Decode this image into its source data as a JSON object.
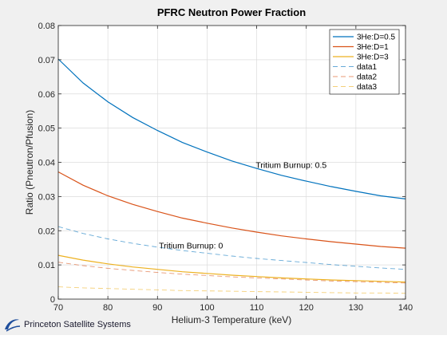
{
  "chart_data": {
    "type": "line",
    "title": "PFRC Neutron Power Fraction",
    "xlabel": "Helium-3 Temperature (keV)",
    "ylabel": "Ratio (Pneutron/Pfusion)",
    "xlim": [
      70,
      140
    ],
    "ylim": [
      0,
      0.08
    ],
    "xticks": [
      70,
      80,
      90,
      100,
      110,
      120,
      130,
      140
    ],
    "yticks": [
      0,
      0.01,
      0.02,
      0.03,
      0.04,
      0.05,
      0.06,
      0.07,
      0.08
    ],
    "ytick_labels": [
      "0",
      "0.01",
      "0.02",
      "0.03",
      "0.04",
      "0.05",
      "0.06",
      "0.07",
      "0.08"
    ],
    "grid": true,
    "legend_position": "top-right",
    "x": [
      70,
      75,
      80,
      85,
      90,
      95,
      100,
      105,
      110,
      115,
      120,
      125,
      130,
      135,
      140
    ],
    "series": [
      {
        "name": "3He:D=0.5",
        "style": "solid",
        "color": "#0072BD",
        "values": [
          0.0702,
          0.0632,
          0.0577,
          0.0531,
          0.0493,
          0.0458,
          0.043,
          0.0404,
          0.0382,
          0.0362,
          0.0345,
          0.0329,
          0.0315,
          0.0302,
          0.0293
        ]
      },
      {
        "name": "3He:D=1",
        "style": "solid",
        "color": "#D95319",
        "values": [
          0.0372,
          0.0333,
          0.0302,
          0.0277,
          0.0256,
          0.0237,
          0.0222,
          0.0208,
          0.0196,
          0.0185,
          0.0176,
          0.0168,
          0.0161,
          0.0154,
          0.0149
        ]
      },
      {
        "name": "3He:D=3",
        "style": "solid",
        "color": "#EDB120",
        "values": [
          0.0128,
          0.0114,
          0.0103,
          0.0094,
          0.0087,
          0.008,
          0.0075,
          0.007,
          0.0066,
          0.0062,
          0.0059,
          0.0056,
          0.0054,
          0.0052,
          0.005
        ]
      },
      {
        "name": "data1",
        "style": "dashed",
        "color": "#0072BD",
        "values": [
          0.0212,
          0.0192,
          0.0176,
          0.0163,
          0.0152,
          0.0142,
          0.0134,
          0.0126,
          0.0119,
          0.0113,
          0.0107,
          0.0101,
          0.0096,
          0.0091,
          0.0087
        ]
      },
      {
        "name": "data2",
        "style": "dashed",
        "color": "#D95319",
        "values": [
          0.0108,
          0.0098,
          0.009,
          0.0084,
          0.0078,
          0.0073,
          0.0069,
          0.0065,
          0.0062,
          0.0059,
          0.0056,
          0.0053,
          0.0051,
          0.0049,
          0.0047
        ]
      },
      {
        "name": "data3",
        "style": "dashed",
        "color": "#EDB120",
        "values": [
          0.0036,
          0.0033,
          0.0031,
          0.0029,
          0.0027,
          0.0025,
          0.0024,
          0.0023,
          0.0022,
          0.0021,
          0.002,
          0.0019,
          0.0018,
          0.0018,
          0.0017
        ]
      }
    ],
    "annotations": [
      {
        "text": "Tritium Burnup: 0.5",
        "x": 109.8,
        "y": 0.0393
      },
      {
        "text": "Tritium Burnup: 0",
        "x": 90.3,
        "y": 0.0157
      }
    ]
  },
  "logo": {
    "text": "Princeton Satellite Systems"
  }
}
